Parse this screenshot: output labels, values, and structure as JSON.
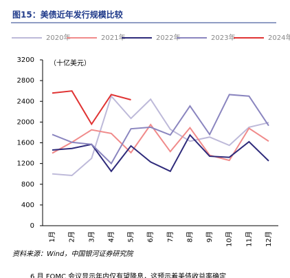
{
  "chart_data": {
    "type": "line",
    "title": "图15：美债近年发行规模比较",
    "unit_note": "（十亿美元）",
    "source": "资料来源：Wind，中国银河证券研究院",
    "footer_text": "6 月 FOMC 会议显示年内仅有望降息，这预示着美债收益率确定",
    "categories": [
      "1月",
      "2月",
      "3月",
      "4月",
      "5月",
      "6月",
      "7月",
      "8月",
      "9月",
      "10月",
      "11月",
      "12月"
    ],
    "series": [
      {
        "name": "2020年",
        "color": "#bdb9d9",
        "values": [
          1000,
          970,
          1300,
          2500,
          2070,
          2440,
          1860,
          1630,
          1710,
          1550,
          1900,
          1990
        ]
      },
      {
        "name": "2021年",
        "color": "#f08a8a",
        "values": [
          1400,
          1610,
          1850,
          1780,
          1410,
          1950,
          1430,
          1890,
          1360,
          1260,
          1880,
          1630
        ]
      },
      {
        "name": "2022年",
        "color": "#2e2a7a",
        "values": [
          1460,
          1490,
          1570,
          1050,
          1540,
          1230,
          1050,
          1750,
          1340,
          1320,
          1620,
          1250
        ]
      },
      {
        "name": "2023年",
        "color": "#8a85bf",
        "values": [
          1760,
          1610,
          1570,
          1200,
          1870,
          1900,
          1750,
          2310,
          1760,
          2530,
          2500,
          1930
        ]
      },
      {
        "name": "2024年",
        "color": "#e03333",
        "values": [
          2560,
          2600,
          1960,
          2530,
          2430,
          null,
          null,
          null,
          null,
          null,
          null,
          null
        ]
      }
    ],
    "ylim": [
      0,
      3200
    ],
    "yticks": [
      0,
      400,
      800,
      1200,
      1600,
      2000,
      2400,
      2800,
      3200
    ],
    "grid": false
  }
}
